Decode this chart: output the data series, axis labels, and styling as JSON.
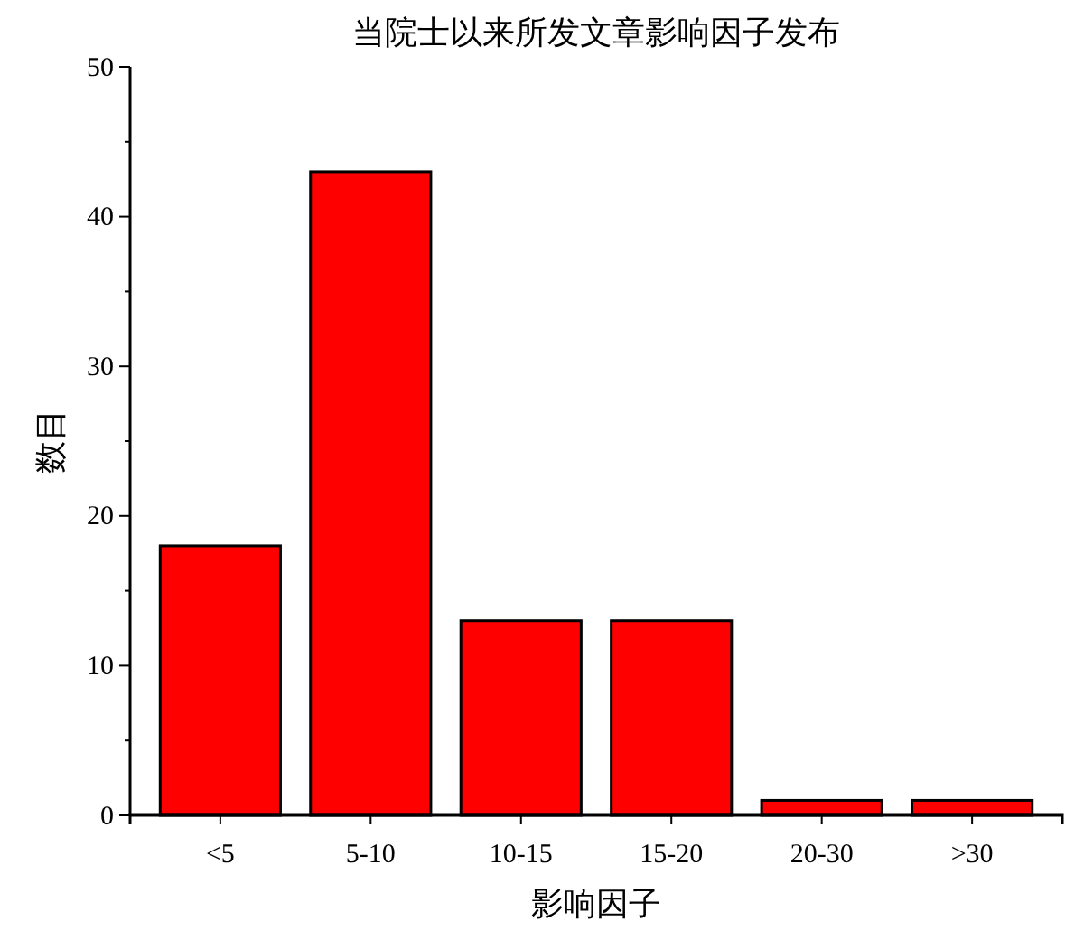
{
  "chart_data": {
    "type": "bar",
    "title": "当院士以来所发文章影响因子发布",
    "xlabel": "影响因子",
    "ylabel": "数目",
    "categories": [
      "<5",
      "5-10",
      "10-15",
      "15-20",
      "20-30",
      ">30"
    ],
    "values": [
      18,
      43,
      13,
      13,
      1,
      1
    ],
    "color": "#ff0000",
    "ylim": [
      0,
      50
    ],
    "yticks": [
      0,
      {
        "value": 5,
        "label": null
      },
      10,
      {
        "value": 15,
        "label": null
      },
      20,
      {
        "value": 25,
        "label": null
      },
      30,
      {
        "value": 35,
        "label": null
      },
      40,
      {
        "value": 45,
        "label": null
      },
      50
    ],
    "grid": false,
    "legend": false
  }
}
